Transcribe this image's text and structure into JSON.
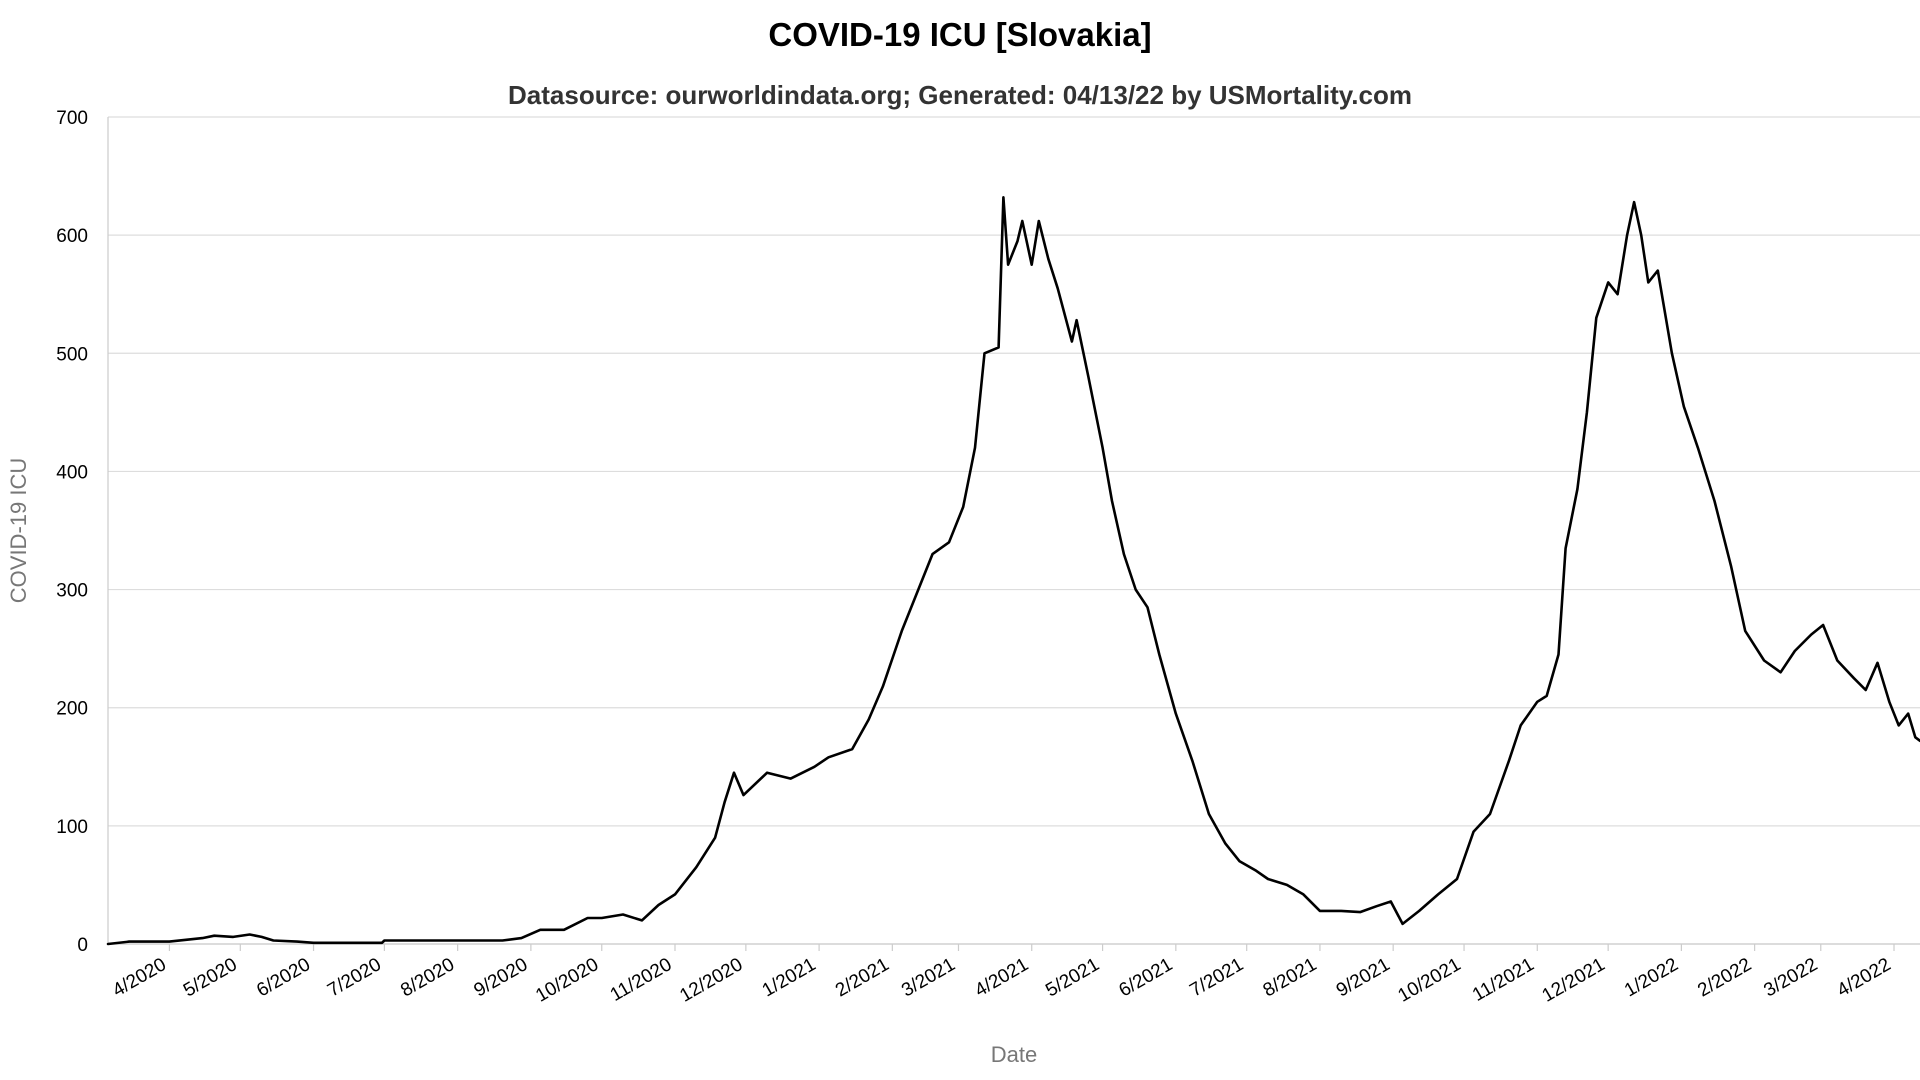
{
  "chart_data": {
    "type": "line",
    "title": "COVID-19 ICU [Slovakia]",
    "subtitle": "Datasource: ourworldindata.org; Generated: 04/13/22 by USMortality.com",
    "xlabel": "Date",
    "ylabel": "COVID-19 ICU",
    "ylim": [
      0,
      700
    ],
    "yticks": [
      0,
      100,
      200,
      300,
      400,
      500,
      600,
      700
    ],
    "xlim": [
      "2020-03-06",
      "2022-04-12"
    ],
    "xticks": [
      {
        "label": "4/2020",
        "date": "2020-04-01"
      },
      {
        "label": "5/2020",
        "date": "2020-05-01"
      },
      {
        "label": "6/2020",
        "date": "2020-06-01"
      },
      {
        "label": "7/2020",
        "date": "2020-07-01"
      },
      {
        "label": "8/2020",
        "date": "2020-08-01"
      },
      {
        "label": "9/2020",
        "date": "2020-09-01"
      },
      {
        "label": "10/2020",
        "date": "2020-10-01"
      },
      {
        "label": "11/2020",
        "date": "2020-11-01"
      },
      {
        "label": "12/2020",
        "date": "2020-12-01"
      },
      {
        "label": "1/2021",
        "date": "2021-01-01"
      },
      {
        "label": "2/2021",
        "date": "2021-02-01"
      },
      {
        "label": "3/2021",
        "date": "2021-03-01"
      },
      {
        "label": "4/2021",
        "date": "2021-04-01"
      },
      {
        "label": "5/2021",
        "date": "2021-05-01"
      },
      {
        "label": "6/2021",
        "date": "2021-06-01"
      },
      {
        "label": "7/2021",
        "date": "2021-07-01"
      },
      {
        "label": "8/2021",
        "date": "2021-08-01"
      },
      {
        "label": "9/2021",
        "date": "2021-09-01"
      },
      {
        "label": "10/2021",
        "date": "2021-10-01"
      },
      {
        "label": "11/2021",
        "date": "2021-11-01"
      },
      {
        "label": "12/2021",
        "date": "2021-12-01"
      },
      {
        "label": "1/2022",
        "date": "2022-01-01"
      },
      {
        "label": "2/2022",
        "date": "2022-02-01"
      },
      {
        "label": "3/2022",
        "date": "2022-03-01"
      },
      {
        "label": "4/2022",
        "date": "2022-04-01"
      }
    ],
    "grid": true,
    "line_color": "#000000",
    "grid_color": "#dddddd",
    "series": [
      {
        "values": [
          {
            "x": "2020-03-06",
            "y": 0
          },
          {
            "x": "2020-03-15",
            "y": 2
          },
          {
            "x": "2020-04-01",
            "y": 2
          },
          {
            "x": "2020-04-15",
            "y": 5
          },
          {
            "x": "2020-04-20",
            "y": 7
          },
          {
            "x": "2020-04-28",
            "y": 6
          },
          {
            "x": "2020-05-05",
            "y": 8
          },
          {
            "x": "2020-05-10",
            "y": 6
          },
          {
            "x": "2020-05-15",
            "y": 3
          },
          {
            "x": "2020-05-25",
            "y": 2
          },
          {
            "x": "2020-06-01",
            "y": 1
          },
          {
            "x": "2020-06-30",
            "y": 1
          },
          {
            "x": "2020-07-01",
            "y": 3
          },
          {
            "x": "2020-07-15",
            "y": 3
          },
          {
            "x": "2020-08-01",
            "y": 3
          },
          {
            "x": "2020-08-20",
            "y": 3
          },
          {
            "x": "2020-08-28",
            "y": 5
          },
          {
            "x": "2020-09-05",
            "y": 12
          },
          {
            "x": "2020-09-15",
            "y": 12
          },
          {
            "x": "2020-09-25",
            "y": 22
          },
          {
            "x": "2020-10-01",
            "y": 22
          },
          {
            "x": "2020-10-10",
            "y": 25
          },
          {
            "x": "2020-10-18",
            "y": 20
          },
          {
            "x": "2020-10-25",
            "y": 33
          },
          {
            "x": "2020-11-01",
            "y": 42
          },
          {
            "x": "2020-11-10",
            "y": 65
          },
          {
            "x": "2020-11-18",
            "y": 90
          },
          {
            "x": "2020-11-22",
            "y": 120
          },
          {
            "x": "2020-11-26",
            "y": 145
          },
          {
            "x": "2020-11-30",
            "y": 126
          },
          {
            "x": "2020-12-10",
            "y": 145
          },
          {
            "x": "2020-12-20",
            "y": 140
          },
          {
            "x": "2020-12-30",
            "y": 150
          },
          {
            "x": "2021-01-05",
            "y": 158
          },
          {
            "x": "2021-01-15",
            "y": 165
          },
          {
            "x": "2021-01-22",
            "y": 190
          },
          {
            "x": "2021-01-28",
            "y": 218
          },
          {
            "x": "2021-02-05",
            "y": 265
          },
          {
            "x": "2021-02-12",
            "y": 300
          },
          {
            "x": "2021-02-18",
            "y": 330
          },
          {
            "x": "2021-02-25",
            "y": 340
          },
          {
            "x": "2021-03-03",
            "y": 370
          },
          {
            "x": "2021-03-08",
            "y": 420
          },
          {
            "x": "2021-03-12",
            "y": 500
          },
          {
            "x": "2021-03-18",
            "y": 505
          },
          {
            "x": "2021-03-20",
            "y": 632
          },
          {
            "x": "2021-03-22",
            "y": 575
          },
          {
            "x": "2021-03-26",
            "y": 595
          },
          {
            "x": "2021-03-28",
            "y": 612
          },
          {
            "x": "2021-04-01",
            "y": 575
          },
          {
            "x": "2021-04-04",
            "y": 612
          },
          {
            "x": "2021-04-08",
            "y": 580
          },
          {
            "x": "2021-04-12",
            "y": 555
          },
          {
            "x": "2021-04-18",
            "y": 510
          },
          {
            "x": "2021-04-20",
            "y": 528
          },
          {
            "x": "2021-04-25",
            "y": 480
          },
          {
            "x": "2021-05-01",
            "y": 420
          },
          {
            "x": "2021-05-05",
            "y": 375
          },
          {
            "x": "2021-05-10",
            "y": 330
          },
          {
            "x": "2021-05-15",
            "y": 300
          },
          {
            "x": "2021-05-20",
            "y": 285
          },
          {
            "x": "2021-05-25",
            "y": 245
          },
          {
            "x": "2021-06-01",
            "y": 195
          },
          {
            "x": "2021-06-08",
            "y": 155
          },
          {
            "x": "2021-06-15",
            "y": 110
          },
          {
            "x": "2021-06-22",
            "y": 85
          },
          {
            "x": "2021-06-28",
            "y": 70
          },
          {
            "x": "2021-07-05",
            "y": 62
          },
          {
            "x": "2021-07-10",
            "y": 55
          },
          {
            "x": "2021-07-18",
            "y": 50
          },
          {
            "x": "2021-07-25",
            "y": 42
          },
          {
            "x": "2021-08-01",
            "y": 28
          },
          {
            "x": "2021-08-10",
            "y": 28
          },
          {
            "x": "2021-08-18",
            "y": 27
          },
          {
            "x": "2021-08-25",
            "y": 32
          },
          {
            "x": "2021-08-31",
            "y": 36
          },
          {
            "x": "2021-09-05",
            "y": 17
          },
          {
            "x": "2021-09-12",
            "y": 28
          },
          {
            "x": "2021-09-20",
            "y": 42
          },
          {
            "x": "2021-09-28",
            "y": 55
          },
          {
            "x": "2021-10-05",
            "y": 95
          },
          {
            "x": "2021-10-12",
            "y": 110
          },
          {
            "x": "2021-10-20",
            "y": 155
          },
          {
            "x": "2021-10-25",
            "y": 185
          },
          {
            "x": "2021-11-01",
            "y": 205
          },
          {
            "x": "2021-11-05",
            "y": 210
          },
          {
            "x": "2021-11-10",
            "y": 245
          },
          {
            "x": "2021-11-13",
            "y": 335
          },
          {
            "x": "2021-11-18",
            "y": 385
          },
          {
            "x": "2021-11-22",
            "y": 450
          },
          {
            "x": "2021-11-26",
            "y": 530
          },
          {
            "x": "2021-12-01",
            "y": 560
          },
          {
            "x": "2021-12-05",
            "y": 550
          },
          {
            "x": "2021-12-09",
            "y": 600
          },
          {
            "x": "2021-12-12",
            "y": 628
          },
          {
            "x": "2021-12-15",
            "y": 600
          },
          {
            "x": "2021-12-18",
            "y": 560
          },
          {
            "x": "2021-12-22",
            "y": 570
          },
          {
            "x": "2021-12-28",
            "y": 500
          },
          {
            "x": "2022-01-02",
            "y": 455
          },
          {
            "x": "2022-01-08",
            "y": 420
          },
          {
            "x": "2022-01-15",
            "y": 375
          },
          {
            "x": "2022-01-22",
            "y": 320
          },
          {
            "x": "2022-01-28",
            "y": 265
          },
          {
            "x": "2022-02-05",
            "y": 240
          },
          {
            "x": "2022-02-12",
            "y": 230
          },
          {
            "x": "2022-02-18",
            "y": 248
          },
          {
            "x": "2022-02-25",
            "y": 262
          },
          {
            "x": "2022-03-02",
            "y": 270
          },
          {
            "x": "2022-03-08",
            "y": 240
          },
          {
            "x": "2022-03-15",
            "y": 225
          },
          {
            "x": "2022-03-20",
            "y": 215
          },
          {
            "x": "2022-03-25",
            "y": 238
          },
          {
            "x": "2022-03-30",
            "y": 205
          },
          {
            "x": "2022-04-03",
            "y": 185
          },
          {
            "x": "2022-04-07",
            "y": 195
          },
          {
            "x": "2022-04-10",
            "y": 175
          },
          {
            "x": "2022-04-12",
            "y": 172
          }
        ]
      }
    ]
  }
}
